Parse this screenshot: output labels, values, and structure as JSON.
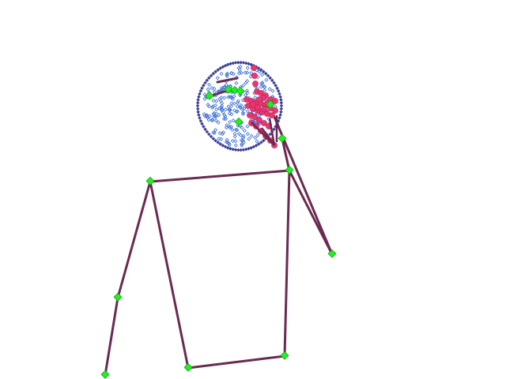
{
  "colors": {
    "background": "#ffffff",
    "skeleton": "#6b2a50",
    "joint": "#22ee22",
    "face_mesh": "#3a6fd8",
    "hand": "#e8366e"
  },
  "skeleton_joints": [
    "head-top",
    "head-left",
    "nose",
    "shoulder-right",
    "shoulder-left",
    "elbow-right",
    "wrist-right",
    "wrist-left",
    "hip-left",
    "hip-right",
    "knee-right",
    "ankle-right"
  ],
  "face_mesh_density": "dense",
  "hand_keypoints_visible": true
}
